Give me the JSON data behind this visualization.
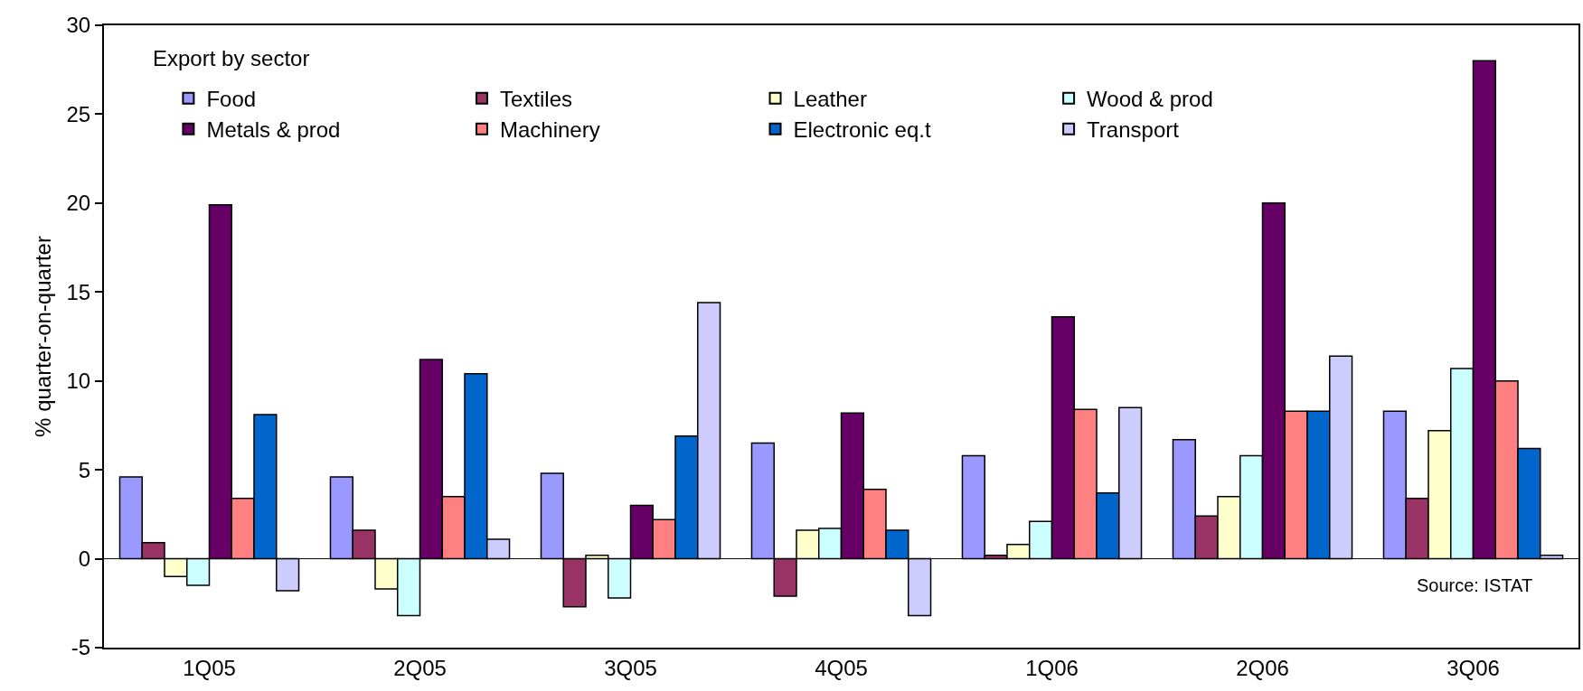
{
  "chart_data": {
    "type": "bar",
    "ylabel": "% quarter-on-quarter",
    "legend_title": "Export by sector",
    "categories": [
      "1Q05",
      "2Q05",
      "3Q05",
      "4Q05",
      "1Q06",
      "2Q06",
      "3Q06"
    ],
    "series": [
      {
        "name": "Food",
        "color": "#9999ff",
        "values": [
          4.6,
          4.6,
          4.8,
          6.5,
          5.8,
          6.7,
          8.3
        ]
      },
      {
        "name": "Textiles",
        "color": "#993366",
        "values": [
          0.9,
          1.6,
          -2.7,
          -2.1,
          0.2,
          2.4,
          3.4
        ]
      },
      {
        "name": "Leather",
        "color": "#ffffcc",
        "values": [
          -1.0,
          -1.7,
          0.2,
          1.6,
          0.8,
          3.5,
          7.2
        ]
      },
      {
        "name": "Wood & prod",
        "color": "#ccffff",
        "values": [
          -1.5,
          -3.2,
          -2.2,
          1.7,
          2.1,
          5.8,
          10.7
        ]
      },
      {
        "name": "Metals & prod",
        "color": "#660066",
        "values": [
          19.9,
          11.2,
          3.0,
          8.2,
          13.6,
          20.0,
          28.0
        ]
      },
      {
        "name": "Machinery",
        "color": "#ff8080",
        "values": [
          3.4,
          3.5,
          2.2,
          3.9,
          8.4,
          8.3,
          10.0
        ]
      },
      {
        "name": "Electronic eq.t",
        "color": "#0066cc",
        "values": [
          8.1,
          10.4,
          6.9,
          1.6,
          3.7,
          8.3,
          6.2
        ]
      },
      {
        "name": "Transport",
        "color": "#ccccff",
        "values": [
          -1.8,
          1.1,
          14.4,
          -3.2,
          8.5,
          11.4,
          0.2
        ]
      }
    ],
    "ylim": [
      -5,
      30
    ],
    "yticks": [
      -5,
      0,
      5,
      10,
      15,
      20,
      25,
      30
    ],
    "legend": "top left",
    "ref_lines": [
      {
        "axis": "y",
        "value": 0,
        "color": "#000000",
        "line_style": "solid"
      }
    ],
    "annotations": [
      "Source: ISTAT"
    ]
  }
}
